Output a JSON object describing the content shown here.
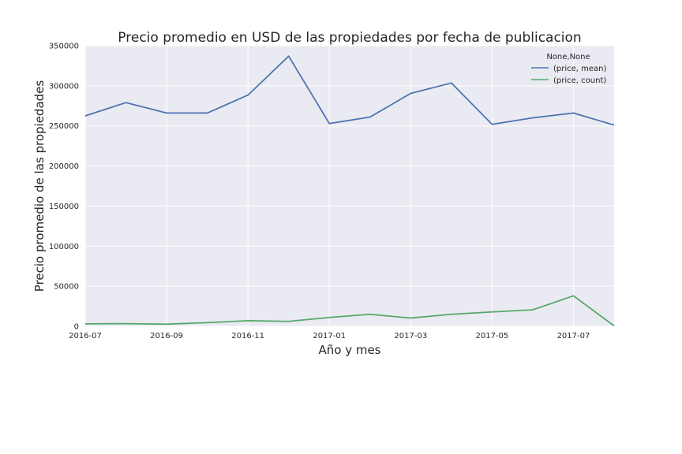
{
  "chart_data": {
    "type": "line",
    "title": "Precio promedio en USD de las propiedades por fecha de publicacion",
    "xlabel": "Año y mes",
    "ylabel": "Precio promedio de las propiedades",
    "x": [
      "2016-07",
      "2016-08",
      "2016-09",
      "2016-10",
      "2016-11",
      "2016-12",
      "2017-01",
      "2017-02",
      "2017-03",
      "2017-04",
      "2017-05",
      "2017-06",
      "2017-07",
      "2017-08"
    ],
    "x_tick_labels": [
      "2016-07",
      "2016-09",
      "2016-11",
      "2017-01",
      "2017-03",
      "2017-05",
      "2017-07"
    ],
    "ylim": [
      0,
      350000
    ],
    "y_ticks": [
      0,
      50000,
      100000,
      150000,
      200000,
      250000,
      300000,
      350000
    ],
    "grid": true,
    "legend": {
      "title": "None,None",
      "placement": "top-right"
    },
    "series": [
      {
        "name": "(price, mean)",
        "color": "#4c72b0",
        "values": [
          262500,
          279000,
          266000,
          266000,
          288500,
          337000,
          253000,
          261000,
          290500,
          303500,
          252000,
          260000,
          266000,
          251000
        ]
      },
      {
        "name": "(price, count)",
        "color": "#55a868",
        "values": [
          3000,
          3300,
          2800,
          4500,
          7000,
          6200,
          11000,
          15000,
          10300,
          15000,
          18000,
          20500,
          38000,
          500
        ]
      }
    ]
  }
}
